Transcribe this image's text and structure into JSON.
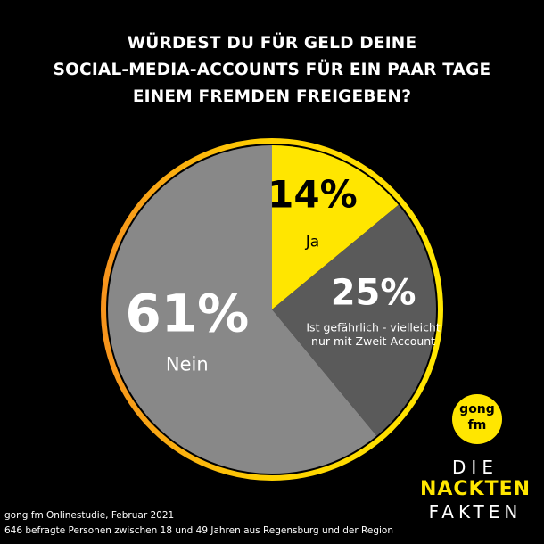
{
  "title_lines": [
    "WÜRDEST DU FÜR GELD DEINE",
    "SOCIAL-MEDIA-ACCOUNTS FÜR EIN PAAR TAGE",
    "EINEM FREMDEN FREIGEBEN?"
  ],
  "chart_data": {
    "type": "pie",
    "slices": [
      {
        "label": "Ja",
        "value": 14,
        "value_label": "14%",
        "color": "#ffe600",
        "text_color": "#000000"
      },
      {
        "label": "Ist gefährlich - vielleicht nur mit Zweit-Account",
        "label_lines": [
          "Ist gefährlich - vielleicht",
          "nur mit Zweit-Account"
        ],
        "value": 25,
        "value_label": "25%",
        "color": "#5a5a5a",
        "text_color": "#ffffff"
      },
      {
        "label": "Nein",
        "value": 61,
        "value_label": "61%",
        "color": "#888888",
        "text_color": "#ffffff"
      }
    ],
    "start": "12 o'clock",
    "direction": "clockwise",
    "ring_colors": [
      "#ffe600",
      "#f7941d"
    ]
  },
  "footer": {
    "line1": "gong fm Onlinestudie, Februar 2021",
    "line2": "646 befragte Personen zwischen 18 und 49 Jahren aus Regensburg und der Region"
  },
  "logo": {
    "line1": "gong",
    "line2": "fm"
  },
  "brand": {
    "line1": "DIE",
    "line2": "NACKTEN",
    "line3": "FAKTEN"
  }
}
